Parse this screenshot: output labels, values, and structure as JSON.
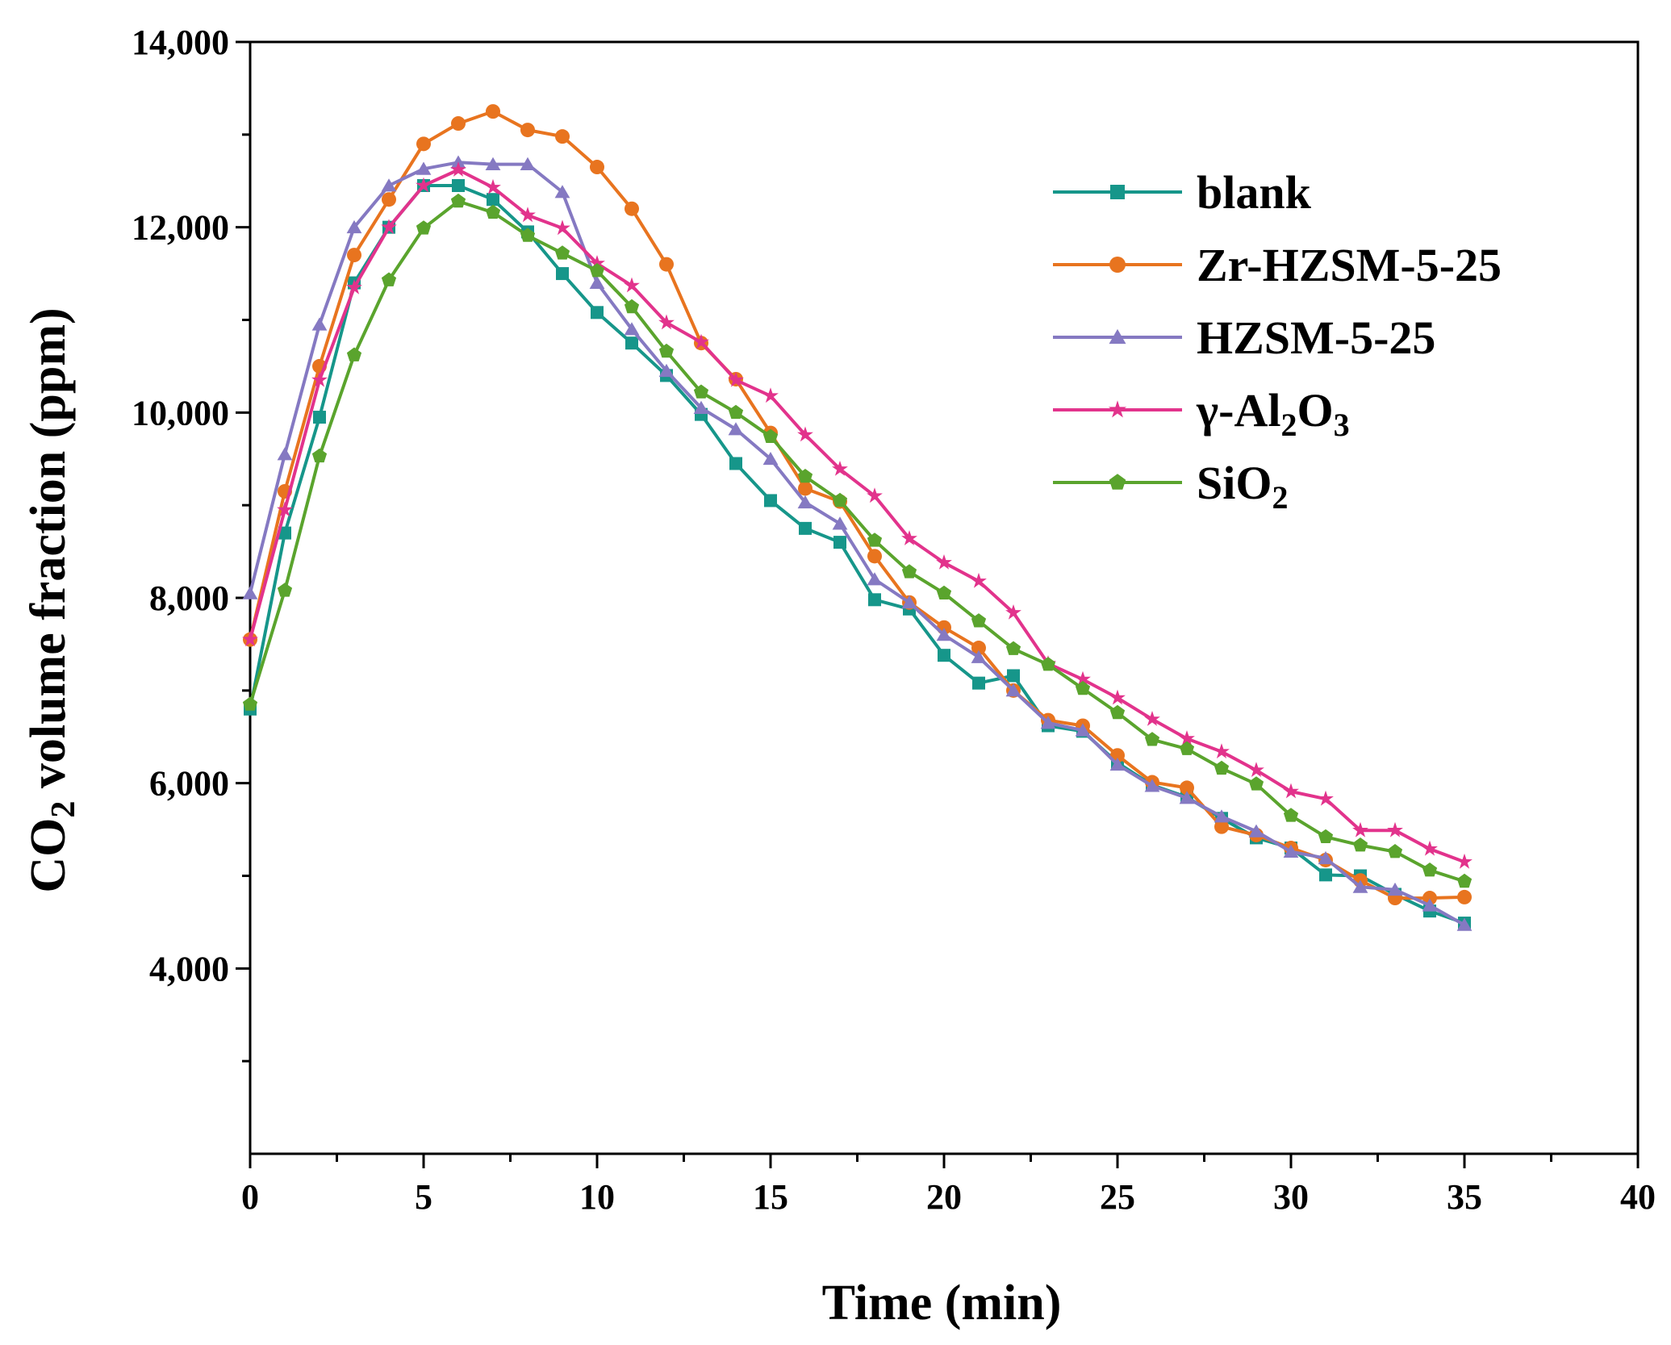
{
  "chart_data": {
    "type": "line",
    "title": "",
    "xlabel": "Time (min)",
    "ylabel": {
      "prefix": "CO",
      "sub": "2",
      "suffix": " volume fraction (ppm)"
    },
    "xlim": [
      0,
      40
    ],
    "ylim": [
      2000,
      14000
    ],
    "xticks": [
      0,
      5,
      10,
      15,
      20,
      25,
      30,
      35,
      40
    ],
    "xtick_labels": [
      "0",
      "5",
      "10",
      "15",
      "20",
      "25",
      "30",
      "35",
      "40"
    ],
    "yticks_labeled": [
      4000,
      6000,
      8000,
      10000,
      12000,
      14000
    ],
    "ytick_labels": [
      "4,000",
      "6,000",
      "8,000",
      "10,000",
      "12,000",
      "14,000"
    ],
    "yticks_minor": [
      3000,
      5000,
      7000,
      9000,
      11000,
      13000
    ],
    "grid": false,
    "legend_position": "top-right",
    "x": [
      0,
      1,
      2,
      3,
      4,
      5,
      6,
      7,
      8,
      9,
      10,
      11,
      12,
      13,
      14,
      15,
      16,
      17,
      18,
      19,
      20,
      21,
      22,
      23,
      24,
      25,
      26,
      27,
      28,
      29,
      30,
      31,
      32,
      33,
      34,
      35
    ],
    "series": [
      {
        "name": "blank",
        "legend": {
          "main": "blank"
        },
        "color": "#16968a",
        "marker": "square",
        "values": [
          6800,
          8700,
          9950,
          11400,
          12000,
          12450,
          12450,
          12300,
          11950,
          11500,
          11080,
          10750,
          10400,
          9980,
          9450,
          9050,
          8750,
          8600,
          7980,
          7880,
          7380,
          7080,
          7160,
          6620,
          6560,
          6220,
          5980,
          5850,
          5620,
          5410,
          5300,
          5010,
          5000,
          4800,
          4620,
          4490
        ]
      },
      {
        "name": "Zr-HZSM-5-25",
        "legend": {
          "main": "Zr-HZSM-5-25"
        },
        "color": "#e8741f",
        "marker": "circle",
        "values": [
          7550,
          9150,
          10500,
          11700,
          12300,
          12900,
          13120,
          13250,
          13050,
          12980,
          12650,
          12200,
          11600,
          10750,
          10360,
          9780,
          9180,
          9040,
          8450,
          7950,
          7680,
          7460,
          7000,
          6680,
          6620,
          6300,
          6010,
          5950,
          5530,
          5440,
          5300,
          5170,
          4950,
          4760,
          4760,
          4770
        ]
      },
      {
        "name": "HZSM-5-25",
        "legend": {
          "main": "HZSM-5-25"
        },
        "color": "#8579c2",
        "marker": "triangle",
        "values": [
          8050,
          9550,
          10950,
          12000,
          12450,
          12630,
          12700,
          12680,
          12680,
          12380,
          11400,
          10900,
          10450,
          10050,
          9820,
          9500,
          9030,
          8800,
          8200,
          7950,
          7600,
          7360,
          7000,
          6650,
          6570,
          6200,
          5970,
          5840,
          5640,
          5480,
          5260,
          5190,
          4880,
          4850,
          4680,
          4470
        ]
      },
      {
        "name": "γ-Al2O3",
        "legend": {
          "main": "γ-Al",
          "sub1": "2",
          "mid": "O",
          "sub2": "3"
        },
        "color": "#e2338c",
        "marker": "star",
        "values": [
          7550,
          8950,
          10350,
          11350,
          12000,
          12450,
          12620,
          12430,
          12130,
          11990,
          11610,
          11370,
          10970,
          10760,
          10350,
          10180,
          9760,
          9390,
          9100,
          8640,
          8380,
          8180,
          7840,
          7290,
          7120,
          6920,
          6690,
          6480,
          6340,
          6140,
          5910,
          5830,
          5490,
          5490,
          5290,
          5150
        ]
      },
      {
        "name": "SiO2",
        "legend": {
          "main": "SiO",
          "sub1": "2"
        },
        "color": "#5aa42d",
        "marker": "pentagon",
        "values": [
          6850,
          8080,
          9530,
          10620,
          11430,
          11990,
          12280,
          12160,
          11910,
          11720,
          11530,
          11140,
          10660,
          10220,
          10000,
          9740,
          9310,
          9050,
          8620,
          8280,
          8050,
          7750,
          7450,
          7280,
          7020,
          6760,
          6470,
          6370,
          6160,
          5990,
          5650,
          5420,
          5330,
          5260,
          5060,
          4940
        ]
      }
    ]
  }
}
